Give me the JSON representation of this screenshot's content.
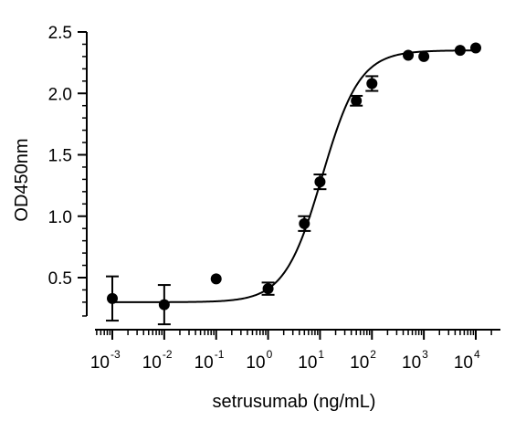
{
  "chart_data": {
    "type": "scatter",
    "xlabel": "setrusumab (ng/mL)",
    "ylabel": "OD450nm",
    "xscale": "log",
    "xlim": [
      0.0005,
      20000
    ],
    "ylim": [
      0.25,
      2.5
    ],
    "yticks": [
      "0.5",
      "1.0",
      "1.5",
      "2.0",
      "2.5"
    ],
    "xticks": [
      {
        "base": "10",
        "exp": "-3"
      },
      {
        "base": "10",
        "exp": "-2"
      },
      {
        "base": "10",
        "exp": "-1"
      },
      {
        "base": "10",
        "exp": "0"
      },
      {
        "base": "10",
        "exp": "1"
      },
      {
        "base": "10",
        "exp": "2"
      },
      {
        "base": "10",
        "exp": "3"
      },
      {
        "base": "10",
        "exp": "4"
      }
    ],
    "points": [
      {
        "x": 0.001,
        "y": 0.33,
        "err": 0.18
      },
      {
        "x": 0.01,
        "y": 0.28,
        "err": 0.16
      },
      {
        "x": 0.1,
        "y": 0.49,
        "err": 0
      },
      {
        "x": 1,
        "y": 0.41,
        "err": 0.05
      },
      {
        "x": 5,
        "y": 0.94,
        "err": 0.06
      },
      {
        "x": 10,
        "y": 1.28,
        "err": 0.06
      },
      {
        "x": 50,
        "y": 1.94,
        "err": 0.04
      },
      {
        "x": 100,
        "y": 2.08,
        "err": 0.06
      },
      {
        "x": 500,
        "y": 2.31,
        "err": 0
      },
      {
        "x": 1000,
        "y": 2.3,
        "err": 0
      },
      {
        "x": 5000,
        "y": 2.35,
        "err": 0
      },
      {
        "x": 10000,
        "y": 2.37,
        "err": 0
      }
    ],
    "fit": {
      "type": "4PL",
      "bottom": 0.3,
      "top": 2.35,
      "ec50": 11,
      "hill": 1.2
    },
    "grid": false,
    "legend": "none",
    "colors": {
      "marker": "#000000",
      "curve": "#000000",
      "axis": "#000000"
    }
  }
}
